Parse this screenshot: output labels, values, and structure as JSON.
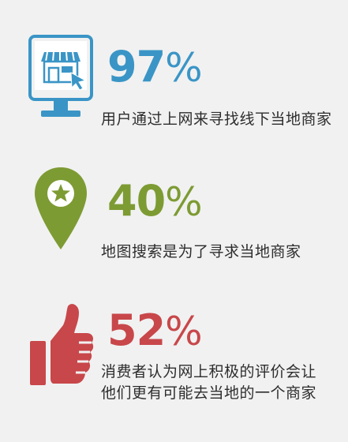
{
  "colors": {
    "blue": "#3a95c6",
    "green": "#7d9b33",
    "red": "#c8474a",
    "text": "#2d2d2d",
    "background": "#f1f1f1"
  },
  "stats": [
    {
      "icon": "storefront-monitor-icon",
      "value": "97",
      "unit": "%",
      "color": "#3a95c6",
      "description": [
        "用户通过上网来寻找线下当地商家"
      ]
    },
    {
      "icon": "map-pin-star-icon",
      "value": "40",
      "unit": "%",
      "color": "#7d9b33",
      "description": [
        "地图搜索是为了寻求当地商家"
      ]
    },
    {
      "icon": "thumbs-up-icon",
      "value": "52",
      "unit": "%",
      "color": "#c8474a",
      "description": [
        "消费者认为网上积极的评价会让",
        "他们更有可能去当地的一个商家"
      ]
    }
  ]
}
